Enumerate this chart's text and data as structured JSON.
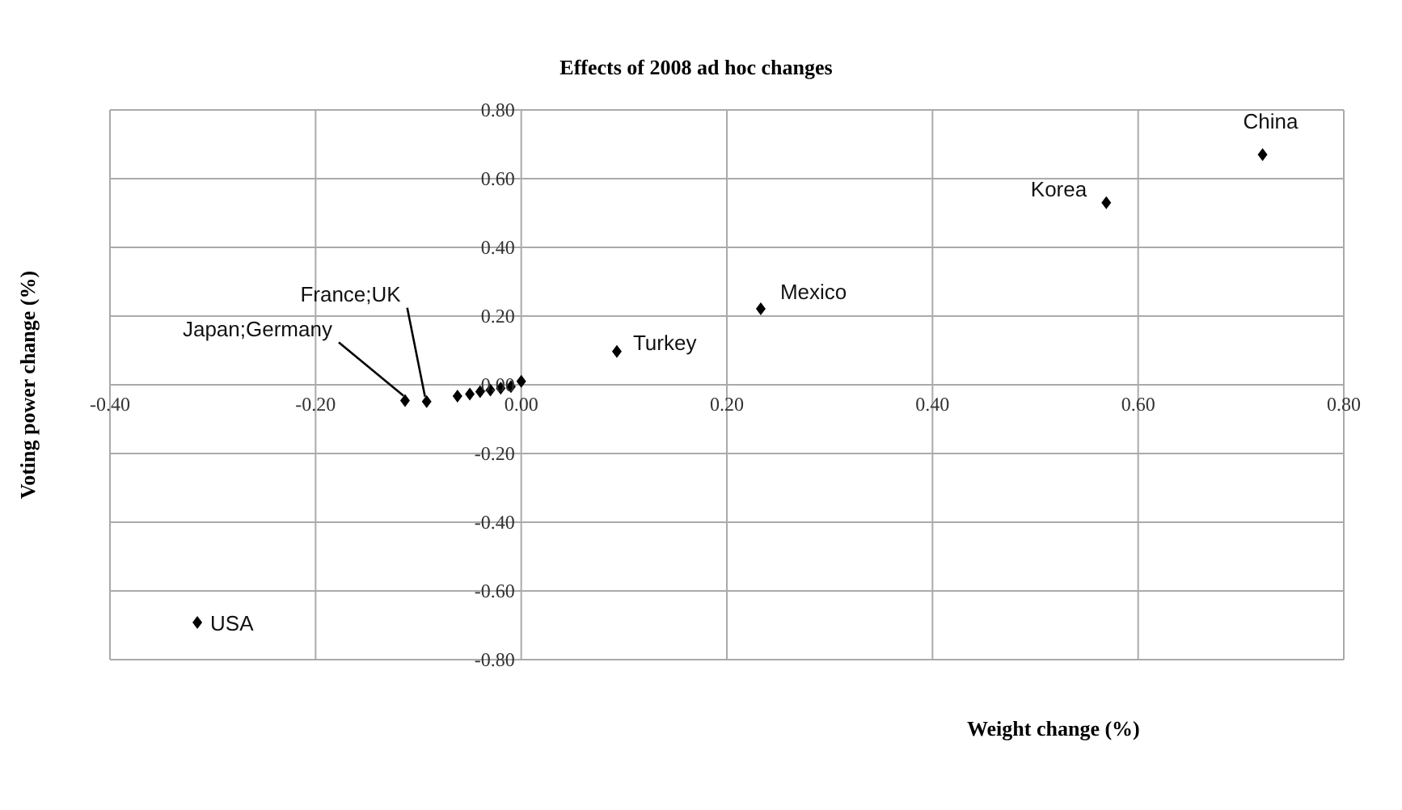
{
  "chart_data": {
    "type": "scatter",
    "title": "Effects of 2008 ad hoc changes",
    "xlabel": "Weight change (%)",
    "ylabel": "Voting power change (%)",
    "x": [
      0.721,
      0.569,
      0.233,
      0.093,
      -0.315,
      -0.092,
      -0.113,
      -0.062,
      -0.05,
      -0.04,
      -0.03,
      -0.02,
      -0.01,
      0.0
    ],
    "series": [
      {
        "color": "#000000",
        "values": [
          0.67,
          0.53,
          0.221,
          0.097,
          -0.692,
          -0.049,
          -0.046,
          -0.033,
          -0.027,
          -0.02,
          -0.015,
          -0.01,
          -0.005,
          0.01
        ]
      }
    ],
    "xlim": [
      -0.4,
      0.8
    ],
    "xticks": [
      {
        "value": -0.4,
        "label": "-0.40"
      },
      {
        "value": -0.2,
        "label": "-0.20"
      },
      {
        "value": 0,
        "label": "0.00"
      },
      {
        "value": 0.2,
        "label": "0.20"
      },
      {
        "value": 0.4,
        "label": "0.40"
      },
      {
        "value": 0.6,
        "label": "0.60"
      },
      {
        "value": 0.8,
        "label": "0.80"
      }
    ],
    "ylim": [
      -0.8,
      0.8
    ],
    "yticks": [
      {
        "value": -0.8,
        "label": "-0.80"
      },
      {
        "value": -0.6,
        "label": "-0.60"
      },
      {
        "value": -0.4,
        "label": "-0.40"
      },
      {
        "value": -0.2,
        "label": "-0.20"
      },
      {
        "value": 0,
        "label": "0.00"
      },
      {
        "value": 0.2,
        "label": "0.20"
      },
      {
        "value": 0.4,
        "label": "0.40"
      },
      {
        "value": 0.6,
        "label": "0.60"
      },
      {
        "value": 0.8,
        "label": "0.80"
      }
    ],
    "grid": true,
    "marker": "diamond",
    "annotations": [
      {
        "text": "China",
        "x": 0.721,
        "y": 0.67
      },
      {
        "text": "Korea",
        "x": 0.569,
        "y": 0.53
      },
      {
        "text": "Mexico",
        "x": 0.233,
        "y": 0.221
      },
      {
        "text": "Turkey",
        "x": 0.093,
        "y": 0.097
      },
      {
        "text": "USA",
        "x": -0.315,
        "y": -0.692
      },
      {
        "text": "France;UK",
        "x": -0.092,
        "y": -0.049
      },
      {
        "text": "Japan;Germany",
        "x": -0.113,
        "y": -0.046
      }
    ]
  }
}
